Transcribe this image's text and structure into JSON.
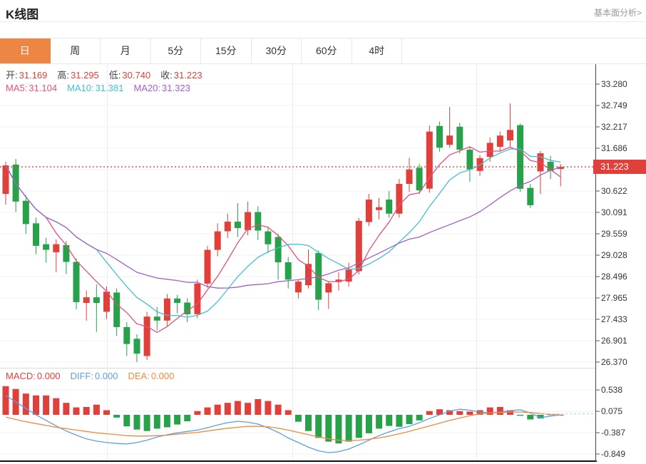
{
  "header": {
    "title": "K线图",
    "link": "基本面分析>"
  },
  "tabs": {
    "items": [
      "日",
      "周",
      "月",
      "5分",
      "15分",
      "30分",
      "60分",
      "4时"
    ],
    "selected_index": 0
  },
  "info_bar": {
    "items": [
      {
        "label": "开:",
        "value": "31.169"
      },
      {
        "label": "高:",
        "value": "31.295"
      },
      {
        "label": "低:",
        "value": "30.740"
      },
      {
        "label": "收:",
        "value": "31.223"
      }
    ]
  },
  "ma_bar": {
    "items": [
      {
        "label": "MA5:",
        "value": "31.104",
        "color": "#e0517e"
      },
      {
        "label": "MA10:",
        "value": "31.381",
        "color": "#41c0d5"
      },
      {
        "label": "MA20:",
        "value": "31.323",
        "color": "#a35fc6"
      }
    ]
  },
  "macd_bar": {
    "items": [
      {
        "label": "MACD:",
        "value": "0.000",
        "color": "#e1403a"
      },
      {
        "label": "DIFF:",
        "value": "0.000",
        "color": "#5d9fe2"
      },
      {
        "label": "DEA:",
        "value": "0.000",
        "color": "#ee8b3e"
      }
    ]
  },
  "price_axis": {
    "labels": [
      {
        "text": "33.280",
        "price": 33.28
      },
      {
        "text": "32.749",
        "price": 32.749
      },
      {
        "text": "32.217",
        "price": 32.217
      },
      {
        "text": "31.686",
        "price": 31.686
      },
      {
        "text": "30.622",
        "price": 30.622
      },
      {
        "text": "30.091",
        "price": 30.091
      },
      {
        "text": "29.559",
        "price": 29.559
      },
      {
        "text": "29.028",
        "price": 29.028
      },
      {
        "text": "28.496",
        "price": 28.496
      },
      {
        "text": "27.965",
        "price": 27.965
      },
      {
        "text": "27.433",
        "price": 27.433
      },
      {
        "text": "26.901",
        "price": 26.901
      },
      {
        "text": "26.370",
        "price": 26.37
      }
    ],
    "hidden_grid_price": 31.154,
    "last_price": {
      "text": "31.223",
      "price": 31.223
    }
  },
  "macd_axis": {
    "labels": [
      {
        "text": "0.538",
        "value": 0.538
      },
      {
        "text": "0.075",
        "value": 0.075
      },
      {
        "text": "-0.387",
        "value": -0.387
      },
      {
        "text": "-0.849",
        "value": -0.849
      }
    ]
  },
  "colors": {
    "up_red": "#e1403a",
    "down_green": "#27a24b",
    "ma5": "#e0517e",
    "ma10": "#41c0d5",
    "ma20": "#a35fc6",
    "diff_blue": "#5d9fe2",
    "dea_orange": "#ee8b3e",
    "tab_orange": "#ed8544",
    "grid": "#f0f0f0",
    "axis": "#555555"
  },
  "chart_data": {
    "type": "candlestick",
    "title": "K线图",
    "legend": [
      "MA5",
      "MA10",
      "MA20",
      "MACD",
      "DIFF",
      "DEA"
    ],
    "ohlc_today": {
      "open": 31.169,
      "high": 31.295,
      "low": 30.74,
      "close": 31.223
    },
    "ma_values": {
      "ma5": 31.104,
      "ma10": 31.381,
      "ma20": 31.323
    },
    "y_range": [
      26.37,
      33.28
    ],
    "last_price": 31.223,
    "candles_ohlc": [
      [
        30.55,
        31.35,
        30.28,
        31.26
      ],
      [
        31.28,
        31.42,
        30.1,
        30.36
      ],
      [
        30.38,
        30.52,
        29.56,
        29.8
      ],
      [
        29.82,
        29.96,
        29.05,
        29.26
      ],
      [
        29.3,
        29.46,
        28.84,
        29.16
      ],
      [
        29.1,
        29.42,
        28.6,
        29.3
      ],
      [
        29.28,
        29.38,
        28.56,
        28.86
      ],
      [
        28.86,
        28.95,
        27.68,
        27.86
      ],
      [
        27.84,
        28.15,
        27.4,
        27.98
      ],
      [
        27.98,
        28.3,
        27.12,
        27.84
      ],
      [
        27.62,
        28.25,
        27.44,
        28.12
      ],
      [
        28.1,
        28.2,
        27.02,
        27.24
      ],
      [
        27.24,
        27.36,
        26.52,
        26.82
      ],
      [
        26.95,
        27.06,
        26.37,
        26.58
      ],
      [
        26.52,
        27.62,
        26.42,
        27.5
      ],
      [
        27.5,
        27.74,
        27.16,
        27.4
      ],
      [
        27.4,
        28.06,
        27.26,
        27.95
      ],
      [
        27.95,
        28.04,
        27.58,
        27.84
      ],
      [
        27.85,
        27.96,
        27.36,
        27.56
      ],
      [
        27.56,
        28.42,
        27.46,
        28.32
      ],
      [
        28.32,
        29.26,
        28.22,
        29.16
      ],
      [
        29.16,
        29.82,
        29.0,
        29.62
      ],
      [
        29.62,
        30.06,
        29.45,
        29.86
      ],
      [
        29.86,
        30.32,
        29.48,
        29.7
      ],
      [
        29.65,
        30.36,
        29.52,
        30.1
      ],
      [
        30.1,
        30.24,
        29.4,
        29.64
      ],
      [
        29.62,
        29.74,
        29.08,
        29.3
      ],
      [
        29.48,
        29.56,
        28.42,
        28.85
      ],
      [
        28.85,
        28.98,
        28.2,
        28.42
      ],
      [
        28.1,
        28.42,
        27.95,
        28.37
      ],
      [
        28.28,
        29.17,
        28.2,
        28.81
      ],
      [
        29.08,
        29.15,
        27.66,
        27.92
      ],
      [
        28.1,
        28.38,
        27.69,
        28.33
      ],
      [
        28.36,
        28.6,
        28.15,
        28.42
      ],
      [
        28.37,
        28.84,
        28.25,
        28.67
      ],
      [
        28.63,
        29.95,
        28.55,
        29.88
      ],
      [
        29.85,
        30.55,
        29.75,
        30.41
      ],
      [
        30.15,
        30.45,
        29.92,
        30.22
      ],
      [
        30.41,
        30.62,
        29.96,
        30.06
      ],
      [
        30.06,
        30.92,
        29.96,
        30.8
      ],
      [
        30.8,
        31.45,
        30.6,
        31.16
      ],
      [
        31.2,
        31.3,
        30.55,
        30.64
      ],
      [
        30.68,
        32.25,
        30.58,
        32.1
      ],
      [
        32.24,
        32.35,
        31.6,
        31.7
      ],
      [
        31.77,
        32.71,
        31.7,
        32.0
      ],
      [
        32.22,
        32.32,
        31.55,
        31.65
      ],
      [
        31.65,
        31.72,
        30.85,
        31.16
      ],
      [
        31.12,
        31.52,
        31.0,
        31.44
      ],
      [
        31.47,
        31.95,
        31.35,
        31.82
      ],
      [
        31.72,
        32.1,
        31.6,
        32.0
      ],
      [
        31.88,
        32.8,
        31.7,
        32.14
      ],
      [
        32.26,
        32.3,
        30.6,
        30.68
      ],
      [
        30.7,
        30.8,
        30.2,
        30.27
      ],
      [
        31.11,
        31.62,
        30.55,
        31.56
      ],
      [
        31.35,
        31.5,
        30.92,
        31.12
      ],
      [
        31.169,
        31.295,
        30.74,
        31.223
      ]
    ],
    "macd": {
      "values": {
        "macd": 0.0,
        "diff": 0.0,
        "dea": 0.0
      },
      "y_range": [
        -0.849,
        0.538
      ],
      "hist": [
        0.62,
        0.56,
        0.46,
        0.42,
        0.42,
        0.36,
        0.26,
        0.16,
        0.17,
        0.22,
        0.1,
        -0.06,
        -0.25,
        -0.32,
        -0.35,
        -0.3,
        -0.27,
        -0.21,
        -0.14,
        0.08,
        0.16,
        0.22,
        0.26,
        0.3,
        0.26,
        0.34,
        0.3,
        0.22,
        0.1,
        -0.15,
        -0.35,
        -0.5,
        -0.58,
        -0.62,
        -0.58,
        -0.5,
        -0.4,
        -0.3,
        -0.24,
        -0.26,
        -0.2,
        -0.12,
        0.08,
        0.12,
        0.1,
        0.08,
        0.07,
        0.1,
        0.16,
        0.17,
        0.1,
        -0.02,
        -0.1,
        -0.08,
        0.01,
        0.0
      ],
      "diff": [
        0.42,
        0.28,
        0.14,
        0.0,
        -0.12,
        -0.24,
        -0.35,
        -0.44,
        -0.52,
        -0.57,
        -0.6,
        -0.62,
        -0.63,
        -0.6,
        -0.55,
        -0.48,
        -0.43,
        -0.39,
        -0.36,
        -0.33,
        -0.28,
        -0.22,
        -0.17,
        -0.14,
        -0.16,
        -0.2,
        -0.28,
        -0.38,
        -0.5,
        -0.6,
        -0.7,
        -0.78,
        -0.82,
        -0.8,
        -0.74,
        -0.65,
        -0.55,
        -0.45,
        -0.37,
        -0.3,
        -0.25,
        -0.17,
        -0.08,
        0.0,
        0.08,
        0.12,
        0.1,
        0.06,
        0.04,
        0.06,
        0.09,
        0.11,
        0.04,
        -0.06,
        -0.03,
        0.0
      ],
      "dea": [
        -0.05,
        -0.1,
        -0.15,
        -0.19,
        -0.23,
        -0.27,
        -0.3,
        -0.33,
        -0.36,
        -0.39,
        -0.41,
        -0.43,
        -0.45,
        -0.46,
        -0.46,
        -0.45,
        -0.44,
        -0.42,
        -0.4,
        -0.38,
        -0.35,
        -0.32,
        -0.29,
        -0.27,
        -0.25,
        -0.25,
        -0.26,
        -0.29,
        -0.33,
        -0.38,
        -0.43,
        -0.48,
        -0.52,
        -0.55,
        -0.56,
        -0.55,
        -0.53,
        -0.5,
        -0.46,
        -0.41,
        -0.36,
        -0.3,
        -0.24,
        -0.18,
        -0.12,
        -0.07,
        -0.02,
        0.02,
        0.04,
        0.05,
        0.06,
        0.06,
        0.05,
        0.03,
        0.01,
        0.0
      ]
    }
  }
}
